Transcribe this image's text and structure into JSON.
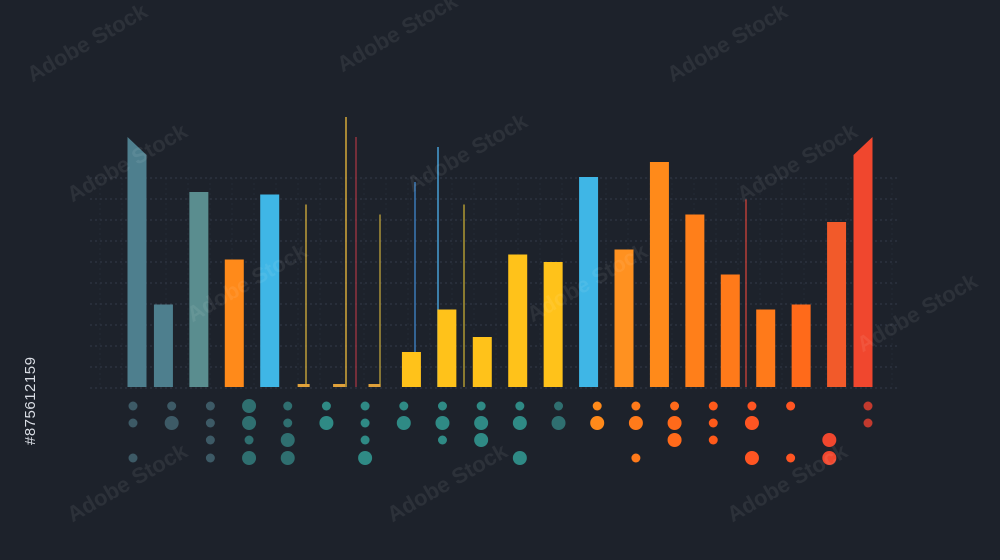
{
  "watermark": "Adobe Stock",
  "stock_id": "#875612159",
  "colors": {
    "background": "#1d222b",
    "grid": "#3a4150",
    "teal_dark": "#4e7f8e",
    "teal_mid": "#5a8d8f",
    "cyan": "#3fb6e6",
    "orange": "#ff8a1a",
    "yellow": "#ffc21a",
    "red": "#f0472e"
  },
  "chart_data": {
    "type": "bar",
    "title": "",
    "xlabel": "",
    "ylabel": "",
    "ylim": [
      0,
      100
    ],
    "grid": true,
    "bars": [
      {
        "value": 100,
        "color": "#4e7f8e",
        "slanted": true
      },
      {
        "value": 33,
        "color": "#4e7f8e"
      },
      {
        "value": 78,
        "color": "#5a8d8f"
      },
      {
        "value": 51,
        "color": "#ff8a1a"
      },
      {
        "value": 77,
        "color": "#3fb6e6"
      },
      {
        "value": 1,
        "color": "#e0a13a"
      },
      {
        "value": 1,
        "color": "#e0a13a"
      },
      {
        "value": 1,
        "color": "#e0a13a"
      },
      {
        "value": 14,
        "color": "#ffc21a"
      },
      {
        "value": 31,
        "color": "#ffc21a"
      },
      {
        "value": 20,
        "color": "#ffc21a"
      },
      {
        "value": 53,
        "color": "#ffc21a"
      },
      {
        "value": 50,
        "color": "#ffc21a"
      },
      {
        "value": 84,
        "color": "#3fb6e6"
      },
      {
        "value": 55,
        "color": "#ff9120"
      },
      {
        "value": 90,
        "color": "#ff8a1a"
      },
      {
        "value": 69,
        "color": "#ff7f1a"
      },
      {
        "value": 45,
        "color": "#ff7a1a"
      },
      {
        "value": 31,
        "color": "#ff7a1a"
      },
      {
        "value": 33,
        "color": "#ff6a1a"
      },
      {
        "value": 66,
        "color": "#f25a2a"
      },
      {
        "value": 100,
        "color": "#f0472e",
        "slanted": true
      }
    ],
    "spikes": [
      {
        "value": 73,
        "color": "#c9a53a"
      },
      {
        "value": 108,
        "color": "#e0b23a"
      },
      {
        "value": 100,
        "color": "#9a3340"
      },
      {
        "value": 69,
        "color": "#b49a3a"
      },
      {
        "value": 82,
        "color": "#3d7fc0"
      },
      {
        "value": 96,
        "color": "#4aa7e0"
      },
      {
        "value": 73,
        "color": "#b9a032"
      },
      {
        "value": 75,
        "color": "#c24038"
      }
    ],
    "dot_columns": [
      {
        "color": "#3d5a66",
        "sizes": [
          1,
          1,
          0,
          1
        ]
      },
      {
        "color": "#3d5a66",
        "sizes": [
          1,
          2,
          0,
          0
        ]
      },
      {
        "color": "#3d5a66",
        "sizes": [
          1,
          1,
          1,
          1
        ]
      },
      {
        "color": "#2f6f70",
        "sizes": [
          2,
          2,
          1,
          2
        ]
      },
      {
        "color": "#2f6f70",
        "sizes": [
          1,
          1,
          2,
          2
        ]
      },
      {
        "color": "#2f8a85",
        "sizes": [
          1,
          2,
          0,
          0
        ]
      },
      {
        "color": "#2f8a85",
        "sizes": [
          1,
          1,
          1,
          2
        ]
      },
      {
        "color": "#2f8a85",
        "sizes": [
          1,
          2,
          0,
          0
        ]
      },
      {
        "color": "#2f8a85",
        "sizes": [
          1,
          2,
          1,
          0
        ]
      },
      {
        "color": "#2f8a85",
        "sizes": [
          1,
          2,
          2,
          0
        ]
      },
      {
        "color": "#2f8a85",
        "sizes": [
          1,
          2,
          0,
          2
        ]
      },
      {
        "color": "#2f6f70",
        "sizes": [
          1,
          2,
          0,
          0
        ]
      },
      {
        "color": "#ff8a1a",
        "sizes": [
          1,
          2,
          0,
          0
        ]
      },
      {
        "color": "#ff7a1a",
        "sizes": [
          1,
          2,
          0,
          1
        ]
      },
      {
        "color": "#ff6a1a",
        "sizes": [
          1,
          2,
          2,
          0
        ]
      },
      {
        "color": "#ff5a1a",
        "sizes": [
          1,
          1,
          1,
          0
        ]
      },
      {
        "color": "#ff5522",
        "sizes": [
          1,
          2,
          0,
          2
        ]
      },
      {
        "color": "#ff5522",
        "sizes": [
          1,
          0,
          0,
          1
        ]
      },
      {
        "color": "#f0472e",
        "sizes": [
          0,
          0,
          2,
          2
        ]
      },
      {
        "color": "#c23a2e",
        "sizes": [
          1,
          1,
          0,
          0
        ]
      }
    ]
  }
}
